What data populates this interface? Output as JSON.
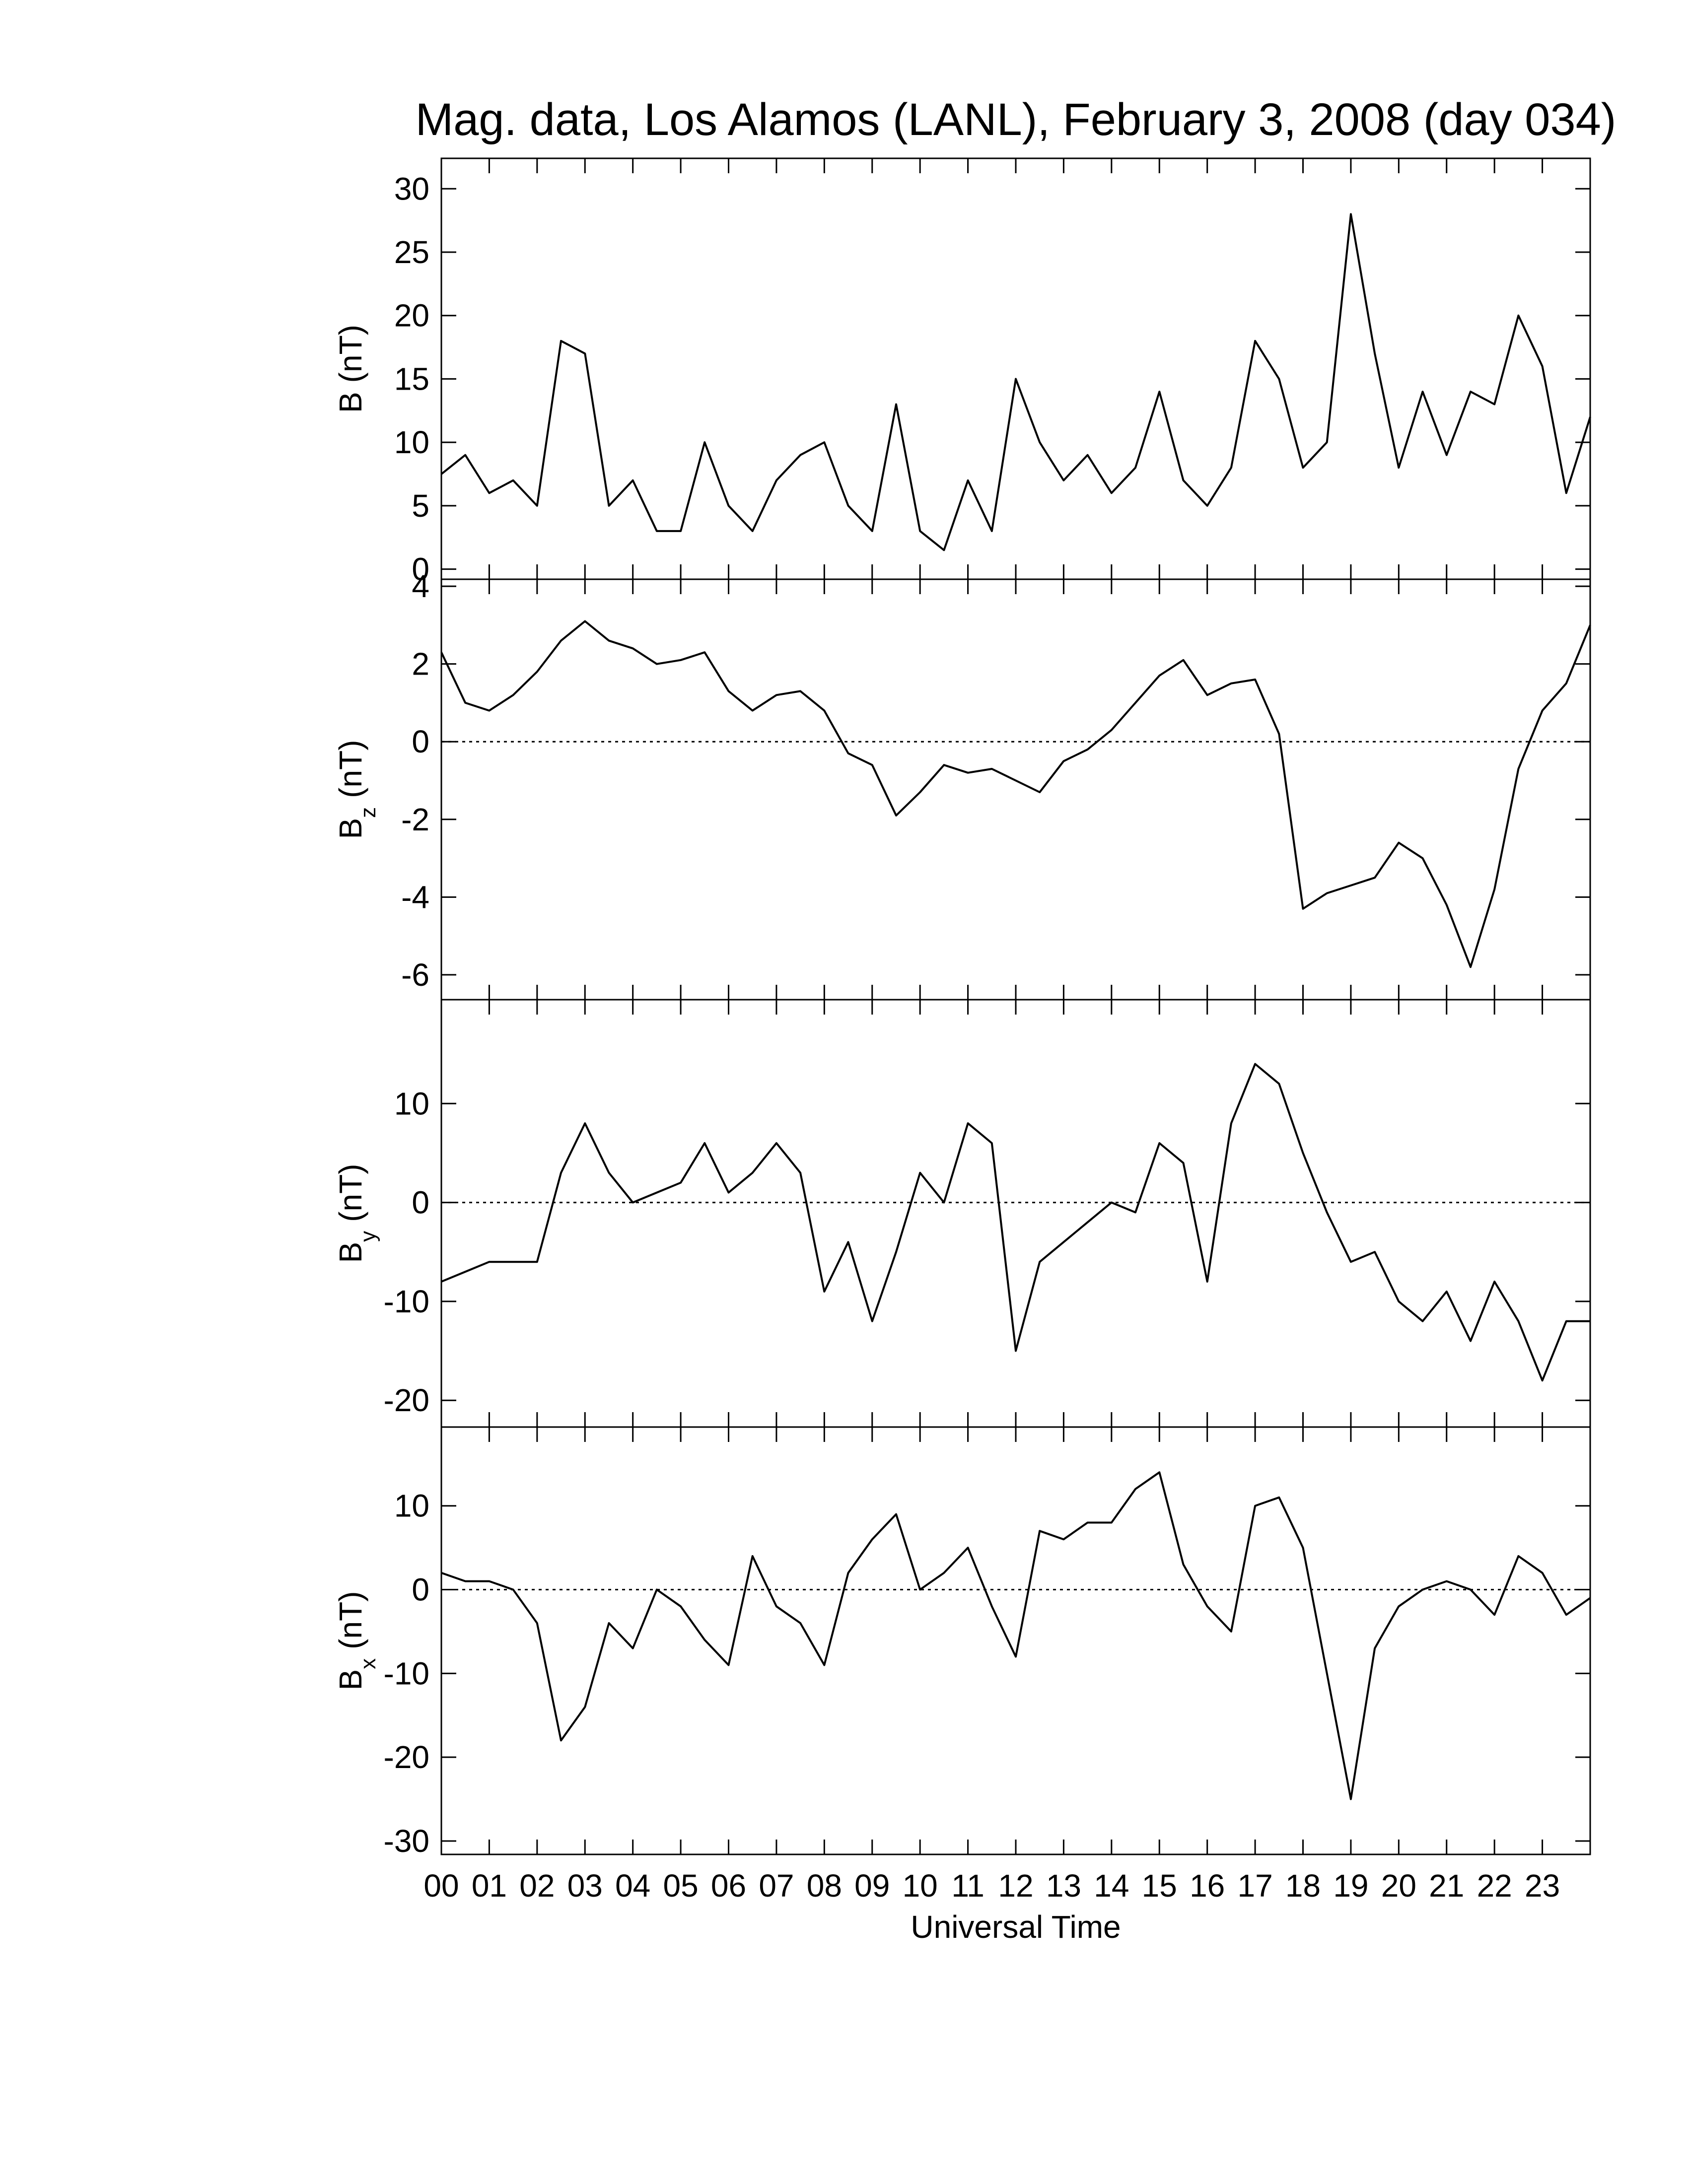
{
  "chart_data": [
    {
      "type": "line",
      "title": "Mag. data, Los Alamos (LANL), February 3, 2008 (day 034)",
      "ylabel": "B",
      "ylabel_unit": "(nT)",
      "color": "#000000",
      "zero_line": false,
      "x": [
        0,
        0.5,
        1,
        1.5,
        2,
        2.5,
        3,
        3.5,
        4,
        4.5,
        5,
        5.5,
        6,
        6.5,
        7,
        7.5,
        8,
        8.5,
        9,
        9.5,
        10,
        10.5,
        11,
        11.5,
        12,
        12.5,
        13,
        13.5,
        14,
        14.5,
        15,
        15.5,
        16,
        16.5,
        17,
        17.5,
        18,
        18.5,
        19,
        19.5,
        20,
        20.5,
        21,
        21.5,
        22,
        22.5,
        23,
        23.5,
        24
      ],
      "values": [
        7.5,
        9,
        6,
        7,
        5,
        18,
        17,
        5,
        7,
        3,
        3,
        10,
        5,
        3,
        7,
        9,
        10,
        5,
        3,
        13,
        3,
        1.5,
        7,
        3,
        15,
        10,
        7,
        9,
        6,
        8,
        14,
        7,
        5,
        8,
        18,
        15,
        8,
        10,
        28,
        17,
        8,
        14,
        9,
        14,
        13,
        20,
        16,
        6,
        12
      ],
      "xlim": [
        0,
        24
      ],
      "xticks": [
        0,
        1,
        2,
        3,
        4,
        5,
        6,
        7,
        8,
        9,
        10,
        11,
        12,
        13,
        14,
        15,
        16,
        17,
        18,
        19,
        20,
        21,
        22,
        23
      ],
      "ylim": [
        -0.8,
        32.4
      ],
      "yticks": [
        0,
        5,
        10,
        15,
        20,
        25,
        30
      ]
    },
    {
      "type": "line",
      "ylabel": "B",
      "ylabel_sub": "z",
      "ylabel_unit": "(nT)",
      "color": "#000000",
      "zero_line": true,
      "x": [
        0,
        0.5,
        1,
        1.5,
        2,
        2.5,
        3,
        3.5,
        4,
        4.5,
        5,
        5.5,
        6,
        6.5,
        7,
        7.5,
        8,
        8.5,
        9,
        9.5,
        10,
        10.5,
        11,
        11.5,
        12,
        12.5,
        13,
        13.5,
        14,
        14.5,
        15,
        15.5,
        16,
        16.5,
        17,
        17.5,
        18,
        18.5,
        19,
        19.5,
        20,
        20.5,
        21,
        21.5,
        22,
        22.5,
        23,
        23.5,
        24
      ],
      "values": [
        2.3,
        1.0,
        0.8,
        1.2,
        1.8,
        2.6,
        3.1,
        2.6,
        2.4,
        2.0,
        2.1,
        2.3,
        1.3,
        0.8,
        1.2,
        1.3,
        0.8,
        -0.3,
        -0.6,
        -1.9,
        -1.3,
        -0.6,
        -0.8,
        -0.7,
        -1.0,
        -1.3,
        -0.5,
        -0.2,
        0.3,
        1.0,
        1.7,
        2.1,
        1.2,
        1.5,
        1.6,
        0.2,
        -4.3,
        -3.9,
        -3.7,
        -3.5,
        -2.6,
        -3.0,
        -4.2,
        -5.8,
        -3.8,
        -0.7,
        0.8,
        1.5,
        3.0
      ],
      "xlim": [
        0,
        24
      ],
      "xticks": [
        0,
        1,
        2,
        3,
        4,
        5,
        6,
        7,
        8,
        9,
        10,
        11,
        12,
        13,
        14,
        15,
        16,
        17,
        18,
        19,
        20,
        21,
        22,
        23
      ],
      "ylim": [
        -6.64,
        4.18
      ],
      "yticks": [
        -6,
        -4,
        -2,
        0,
        2,
        4
      ]
    },
    {
      "type": "line",
      "ylabel": "B",
      "ylabel_sub": "y",
      "ylabel_unit": "(nT)",
      "color": "#000000",
      "zero_line": true,
      "x": [
        0,
        0.5,
        1,
        1.5,
        2,
        2.5,
        3,
        3.5,
        4,
        4.5,
        5,
        5.5,
        6,
        6.5,
        7,
        7.5,
        8,
        8.5,
        9,
        9.5,
        10,
        10.5,
        11,
        11.5,
        12,
        12.5,
        13,
        13.5,
        14,
        14.5,
        15,
        15.5,
        16,
        16.5,
        17,
        17.5,
        18,
        18.5,
        19,
        19.5,
        20,
        20.5,
        21,
        21.5,
        22,
        22.5,
        23,
        23.5,
        24
      ],
      "values": [
        -8,
        -7,
        -6,
        -6,
        -6,
        3,
        8,
        3,
        0,
        1,
        2,
        6,
        1,
        3,
        6,
        3,
        -9,
        -4,
        -12,
        -5,
        3,
        0,
        8,
        6,
        -15,
        -6,
        -4,
        -2,
        0,
        -1,
        6,
        4,
        -8,
        8,
        14,
        12,
        5,
        -1,
        -6,
        -5,
        -10,
        -12,
        -9,
        -14,
        -8,
        -12,
        -18,
        -12,
        -12
      ],
      "xlim": [
        0,
        24
      ],
      "xticks": [
        0,
        1,
        2,
        3,
        4,
        5,
        6,
        7,
        8,
        9,
        10,
        11,
        12,
        13,
        14,
        15,
        16,
        17,
        18,
        19,
        20,
        21,
        22,
        23
      ],
      "ylim": [
        -22.7,
        20.5
      ],
      "yticks": [
        -20,
        -10,
        0,
        10
      ]
    },
    {
      "type": "line",
      "ylabel": "B",
      "ylabel_sub": "x",
      "ylabel_unit": "(nT)",
      "xlabel": "Universal Time",
      "color": "#000000",
      "zero_line": true,
      "x": [
        0,
        0.5,
        1,
        1.5,
        2,
        2.5,
        3,
        3.5,
        4,
        4.5,
        5,
        5.5,
        6,
        6.5,
        7,
        7.5,
        8,
        8.5,
        9,
        9.5,
        10,
        10.5,
        11,
        11.5,
        12,
        12.5,
        13,
        13.5,
        14,
        14.5,
        15,
        15.5,
        16,
        16.5,
        17,
        17.5,
        18,
        18.5,
        19,
        19.5,
        20,
        20.5,
        21,
        21.5,
        22,
        22.5,
        23,
        23.5,
        24
      ],
      "values": [
        2,
        1,
        1,
        0,
        -4,
        -18,
        -14,
        -4,
        -7,
        0,
        -2,
        -6,
        -9,
        4,
        -2,
        -4,
        -9,
        2,
        6,
        9,
        0,
        2,
        5,
        -2,
        -8,
        7,
        6,
        8,
        8,
        12,
        14,
        3,
        -2,
        -5,
        10,
        11,
        5,
        -10,
        -25,
        -7,
        -2,
        0,
        1,
        0,
        -3,
        4,
        2,
        -3,
        -1
      ],
      "xlim": [
        0,
        24
      ],
      "xticks": [
        {
          "value": 0,
          "label": "00"
        },
        {
          "value": 1,
          "label": "01"
        },
        {
          "value": 2,
          "label": "02"
        },
        {
          "value": 3,
          "label": "03"
        },
        {
          "value": 4,
          "label": "04"
        },
        {
          "value": 5,
          "label": "05"
        },
        {
          "value": 6,
          "label": "06"
        },
        {
          "value": 7,
          "label": "07"
        },
        {
          "value": 8,
          "label": "08"
        },
        {
          "value": 9,
          "label": "09"
        },
        {
          "value": 10,
          "label": "10"
        },
        {
          "value": 11,
          "label": "11"
        },
        {
          "value": 12,
          "label": "12"
        },
        {
          "value": 13,
          "label": "13"
        },
        {
          "value": 14,
          "label": "14"
        },
        {
          "value": 15,
          "label": "15"
        },
        {
          "value": 16,
          "label": "16"
        },
        {
          "value": 17,
          "label": "17"
        },
        {
          "value": 18,
          "label": "18"
        },
        {
          "value": 19,
          "label": "19"
        },
        {
          "value": 20,
          "label": "20"
        },
        {
          "value": 21,
          "label": "21"
        },
        {
          "value": 22,
          "label": "22"
        },
        {
          "value": 23,
          "label": "23"
        }
      ],
      "ylim": [
        -31.6,
        19.4
      ],
      "yticks": [
        -30,
        -20,
        -10,
        0,
        10
      ]
    }
  ]
}
